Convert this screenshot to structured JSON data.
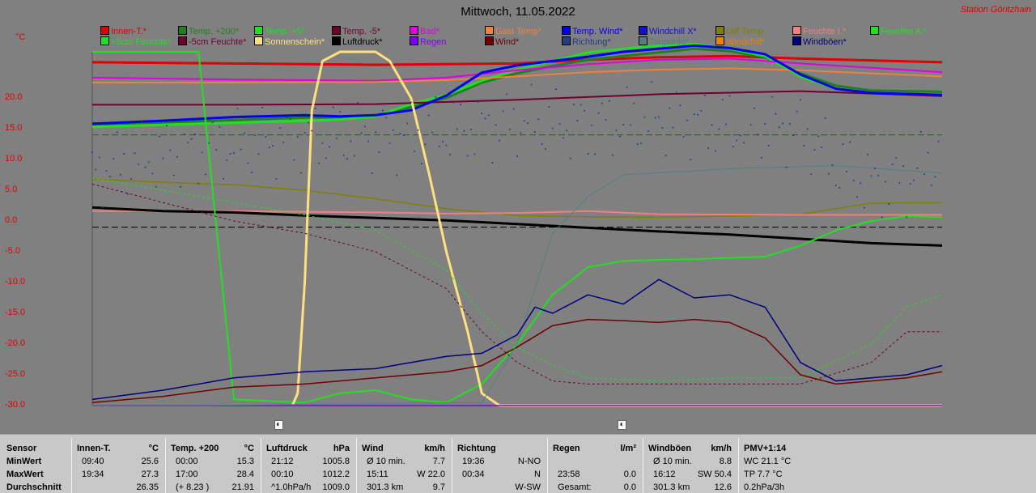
{
  "title": "Mittwoch, 11.05.2022",
  "station": "Station Göritzhain",
  "unit": "°C",
  "legend": [
    {
      "label": "Innen-T.*",
      "color": "#e00000"
    },
    {
      "label": "Temp. +200*",
      "color": "#208020"
    },
    {
      "label": "Temp. +5*",
      "color": "#20e020"
    },
    {
      "label": "Temp. -5*",
      "color": "#700030"
    },
    {
      "label": "Bad*",
      "color": "#e000e0"
    },
    {
      "label": "Gast Temp*",
      "color": "#f08040"
    },
    {
      "label": "Temp. Wind*",
      "color": "#0000f0"
    },
    {
      "label": "Windchill X*",
      "color": "#1010d0"
    },
    {
      "label": "Diff Temp.",
      "color": "#808000"
    },
    {
      "label": "Feuchte I.*",
      "color": "#f08080"
    },
    {
      "label": "Feuchte A.*",
      "color": "#20e020"
    },
    {
      "label": "+5cm Feuchte*",
      "color": "#20e020"
    },
    {
      "label": "-5cm Feuchte*",
      "color": "#700030"
    },
    {
      "label": "Sonnenschein*",
      "color": "#ffe080"
    },
    {
      "label": "Luftdruck*",
      "color": "#000000"
    },
    {
      "label": "Regen",
      "color": "#8000f0"
    },
    {
      "label": "Wind*",
      "color": "#700000"
    },
    {
      "label": "Richtung*",
      "color": "#204080"
    },
    {
      "label": "Taupunkt*",
      "color": "#508080"
    },
    {
      "label": "Windchill*",
      "color": "#f08000"
    },
    {
      "label": "Windböen*",
      "color": "#000080"
    }
  ],
  "chart_data": {
    "type": "line",
    "x_range": [
      "00:00",
      "24:00"
    ],
    "ylim": [
      -30,
      27.5
    ],
    "yticks": [
      "20.0",
      "15.0",
      "10.0",
      "5.0",
      "0.0",
      "-5.0",
      "-10.0",
      "-15.0",
      "-20.0",
      "-25.0",
      "-30.0"
    ],
    "sun_markers": [
      "sunrise-icon",
      "sunset-icon"
    ],
    "series": [
      {
        "name": "Innen-T.*",
        "color": "#e00000",
        "x": [
          0,
          4,
          8,
          12,
          14,
          16,
          18,
          20,
          24
        ],
        "y": [
          25.8,
          25.6,
          25.4,
          25.6,
          26.2,
          26.6,
          26.8,
          26.4,
          25.8
        ]
      },
      {
        "name": "Temp. +200*",
        "color": "#208020",
        "x": [
          0,
          3,
          6,
          7,
          8,
          9,
          10,
          11,
          12,
          13,
          14,
          15,
          16,
          17,
          18,
          19,
          20,
          21,
          22,
          24
        ],
        "y": [
          15.6,
          16.2,
          16.8,
          16.8,
          17.2,
          18.5,
          20.0,
          22.5,
          24.0,
          25.2,
          26.2,
          26.8,
          27.4,
          28.0,
          27.6,
          26.6,
          24.0,
          22.0,
          21.2,
          21.0
        ]
      },
      {
        "name": "Temp. +5*",
        "color": "#20e020",
        "x": [
          0,
          3,
          6,
          7,
          8,
          9,
          10,
          11,
          12,
          13,
          14,
          15,
          16,
          17,
          18,
          19,
          20,
          21,
          22,
          24
        ],
        "y": [
          15.3,
          15.8,
          16.3,
          16.5,
          17.0,
          19.0,
          20.5,
          22.8,
          24.6,
          26.0,
          27.4,
          28.0,
          28.5,
          28.8,
          28.0,
          26.8,
          23.5,
          21.5,
          20.8,
          20.5
        ]
      },
      {
        "name": "Temp. -5*",
        "color": "#700030",
        "x": [
          0,
          4,
          8,
          12,
          16,
          20,
          24
        ],
        "y": [
          18.9,
          18.9,
          19.0,
          19.7,
          20.6,
          21.1,
          20.3
        ]
      },
      {
        "name": "Bad*",
        "color": "#e000e0",
        "x": [
          0,
          4,
          8,
          10,
          12,
          14,
          16,
          18,
          20,
          24
        ],
        "y": [
          23.3,
          23.0,
          22.8,
          23.3,
          24.5,
          25.5,
          26.2,
          26.4,
          25.6,
          24.2
        ]
      },
      {
        "name": "Gast Temp*",
        "color": "#f08040",
        "x": [
          0,
          4,
          8,
          10,
          12,
          14,
          16,
          18,
          20,
          24
        ],
        "y": [
          22.5,
          22.5,
          22.6,
          22.9,
          23.5,
          24.2,
          24.6,
          24.8,
          24.5,
          23.5
        ]
      },
      {
        "name": "Temp. Wind*",
        "color": "#0000f0",
        "x": [
          0,
          2,
          4,
          6,
          7,
          8,
          9,
          10,
          11,
          12,
          13,
          14,
          15,
          16,
          17,
          18,
          19,
          20,
          21,
          22,
          24
        ],
        "y": [
          15.8,
          16.3,
          16.9,
          17.2,
          17.0,
          17.2,
          18.0,
          20.4,
          24.1,
          25.3,
          26.0,
          26.7,
          27.5,
          28.0,
          28.5,
          28.1,
          27.1,
          23.8,
          21.5,
          20.8,
          20.5
        ]
      },
      {
        "name": "Diff Temp.",
        "color": "#808000",
        "x": [
          0,
          2,
          4,
          6,
          8,
          10,
          12,
          14,
          16,
          18,
          20,
          22,
          24
        ],
        "y": [
          6.8,
          6.3,
          5.9,
          5.0,
          3.6,
          2.0,
          0.9,
          0.7,
          0.6,
          0.8,
          1.1,
          2.9,
          3.0
        ]
      },
      {
        "name": "Feuchte I.*",
        "color": "#f08080",
        "x": [
          0,
          4,
          8,
          10,
          12,
          14,
          16,
          20,
          24
        ],
        "y": [
          1.6,
          1.6,
          1.4,
          1.2,
          1.3,
          1.6,
          1.1,
          1.0,
          1.0
        ]
      },
      {
        "name": "Luftdruck*",
        "color": "#000000",
        "x": [
          0,
          2,
          4,
          6,
          8,
          10,
          12,
          14,
          16,
          18,
          20,
          22,
          24
        ],
        "y": [
          2.2,
          1.6,
          1.4,
          0.9,
          0.5,
          0.1,
          -0.5,
          -1.1,
          -1.7,
          -2.2,
          -2.9,
          -3.6,
          -4.0
        ]
      },
      {
        "name": "Feuchte A.*",
        "color": "#20e020",
        "x": [
          0,
          3,
          4,
          6,
          7,
          8,
          9,
          10,
          11,
          12,
          13,
          14,
          15,
          16,
          17,
          18,
          19,
          20,
          21,
          22,
          23,
          24
        ],
        "y": [
          27.5,
          27.5,
          -29.0,
          -29.5,
          -28.0,
          -27.5,
          -29.0,
          -29.5,
          -26.5,
          -20.0,
          -12.0,
          -7.5,
          -6.5,
          -6.3,
          -6.2,
          -6.0,
          -5.8,
          -4.0,
          -1.5,
          0.0,
          0.8,
          0.6
        ]
      },
      {
        "name": "Sonnenschein*",
        "color": "#ffe080",
        "x": [
          5.65,
          5.8,
          6.0,
          6.2,
          6.5,
          7.0,
          7.5,
          7.8,
          8.0,
          8.4,
          9.0,
          9.5,
          10.0,
          10.6,
          11.0,
          11.5,
          24
        ],
        "y": [
          -30,
          -28,
          -10,
          18,
          26,
          27.5,
          27.5,
          27.5,
          27.5,
          26,
          20,
          8,
          -5,
          -18,
          -28,
          -30,
          -30
        ]
      },
      {
        "name": "+5cm Feuchte*",
        "color": "#20e020",
        "x": [
          0,
          2,
          4,
          6,
          8,
          10,
          11,
          12,
          13,
          14,
          16,
          18,
          20,
          22,
          23,
          24
        ],
        "y": [
          7.0,
          5.0,
          3.0,
          1.0,
          -1.5,
          -8.0,
          -15.0,
          -20.5,
          -23.5,
          -25.5,
          -26.0,
          -25.5,
          -25.5,
          -20.0,
          -14.0,
          -12.0
        ]
      },
      {
        "name": "-5cm Feuchte*",
        "color": "#700030",
        "x": [
          0,
          2,
          4,
          6,
          8,
          10,
          11,
          12,
          13,
          14,
          16,
          18,
          20,
          22,
          23,
          24
        ],
        "y": [
          6.0,
          3.0,
          0.0,
          -2.0,
          -5.0,
          -11.0,
          -18.0,
          -23.0,
          -26.0,
          -26.5,
          -26.5,
          -26.5,
          -26.5,
          -23.0,
          -18.0,
          -18.0
        ]
      },
      {
        "name": "Regen",
        "color": "#8000f0",
        "x": [
          0,
          24
        ],
        "y": [
          -30,
          -30
        ]
      },
      {
        "name": "Wind*",
        "color": "#700000",
        "x": [
          0,
          2,
          4,
          6,
          8,
          9,
          10,
          11,
          12,
          13,
          14,
          15,
          16,
          17,
          18,
          19,
          20,
          21,
          22,
          23,
          24
        ],
        "y": [
          -29.5,
          -28.5,
          -27.0,
          -26.5,
          -25.5,
          -25.0,
          -24.5,
          -23.5,
          -20.5,
          -17.0,
          -16.0,
          -16.2,
          -16.5,
          -16.0,
          -16.5,
          -19.0,
          -25.0,
          -26.5,
          -26.0,
          -25.5,
          -24.5
        ]
      },
      {
        "name": "Taupunkt*",
        "color": "#508080",
        "x": [
          0,
          3,
          3.05,
          11,
          12,
          13,
          14,
          15,
          18,
          21,
          24
        ],
        "y": [
          -30,
          -30,
          -30,
          -29.5,
          -20.0,
          -2.0,
          4.0,
          7.5,
          8.5,
          9.0,
          7.8
        ]
      },
      {
        "name": "Windböen*",
        "color": "#000080",
        "x": [
          0,
          2,
          4,
          6,
          8,
          9,
          10,
          11,
          12,
          12.5,
          13,
          14,
          15,
          16,
          17,
          18,
          19,
          20,
          21,
          22,
          23,
          24
        ],
        "y": [
          -29.0,
          -27.5,
          -25.5,
          -24.5,
          -24.0,
          -23.0,
          -22.0,
          -21.5,
          -18.5,
          -14.0,
          -15.0,
          -12.0,
          -13.5,
          -9.5,
          -12.5,
          -12.0,
          -14.0,
          -23.0,
          -26.0,
          -25.5,
          -25.0,
          -23.5
        ]
      },
      {
        "name": "Richtung*",
        "color": "#204080",
        "x": [
          0,
          2,
          4,
          6,
          8,
          10,
          12,
          14,
          16,
          18,
          20,
          21,
          22,
          23,
          24
        ],
        "y": [
          8.0,
          10.5,
          12.0,
          13.5,
          13.5,
          14.5,
          16.0,
          15.5,
          16.5,
          15.5,
          15.0,
          9.0,
          6.0,
          6.5,
          11.5
        ]
      }
    ]
  },
  "stats": {
    "rows": [
      "Sensor",
      "MinWert",
      "MaxWert",
      "Durchschnitt"
    ],
    "blocks": [
      {
        "title": "Innen-T.",
        "unit": "°C",
        "min_time": "09:40",
        "min_val": "25.6",
        "max_time": "19:34",
        "max_val": "27.3",
        "avg_left": "",
        "avg_val": "26.35"
      },
      {
        "title": "Temp. +200",
        "unit": "°C",
        "min_time": "00:00",
        "min_val": "15.3",
        "max_time": "17:00",
        "max_val": "28.4",
        "avg_left": "(+ 8.23 )",
        "avg_val": "21.91"
      },
      {
        "title": "Luftdruck",
        "unit": "hPa",
        "min_time": "21:12",
        "min_val": "1005.8",
        "max_time": "00:10",
        "max_val": "1012.2",
        "avg_left": "^1.0hPa/h",
        "avg_val": "1009.0"
      },
      {
        "title": "Wind",
        "unit": "km/h",
        "min_time": "Ø 10 min.",
        "min_val": "7.7",
        "max_time": "15:11",
        "max_val": "W 22.0",
        "avg_left": "301.3 km",
        "avg_val": "9.7"
      },
      {
        "title": "Richtung",
        "unit": "",
        "min_time": "19:36",
        "min_val": "N-NO",
        "max_time": "00:34",
        "max_val": "N",
        "avg_left": "",
        "avg_val": "W-SW"
      },
      {
        "title": "Regen",
        "unit": "l/m²",
        "min_time": "",
        "min_val": "",
        "max_time": "23:58",
        "max_val": "0.0",
        "avg_left": "Gesamt:",
        "avg_val": "0.0"
      },
      {
        "title": "Windböen",
        "unit": "km/h",
        "min_time": "Ø 10 min.",
        "min_val": "8.8",
        "max_time": "16:12",
        "max_val": "SW 50.4",
        "avg_left": "301.3 km",
        "avg_val": "12.6"
      },
      {
        "title": "PMV+1:14",
        "unit": "",
        "min_time": "WC 21.1 °C",
        "min_val": "",
        "max_time": "TP 7.7 °C",
        "max_val": "",
        "avg_left": "0.2hPa/3h",
        "avg_val": ""
      }
    ]
  }
}
